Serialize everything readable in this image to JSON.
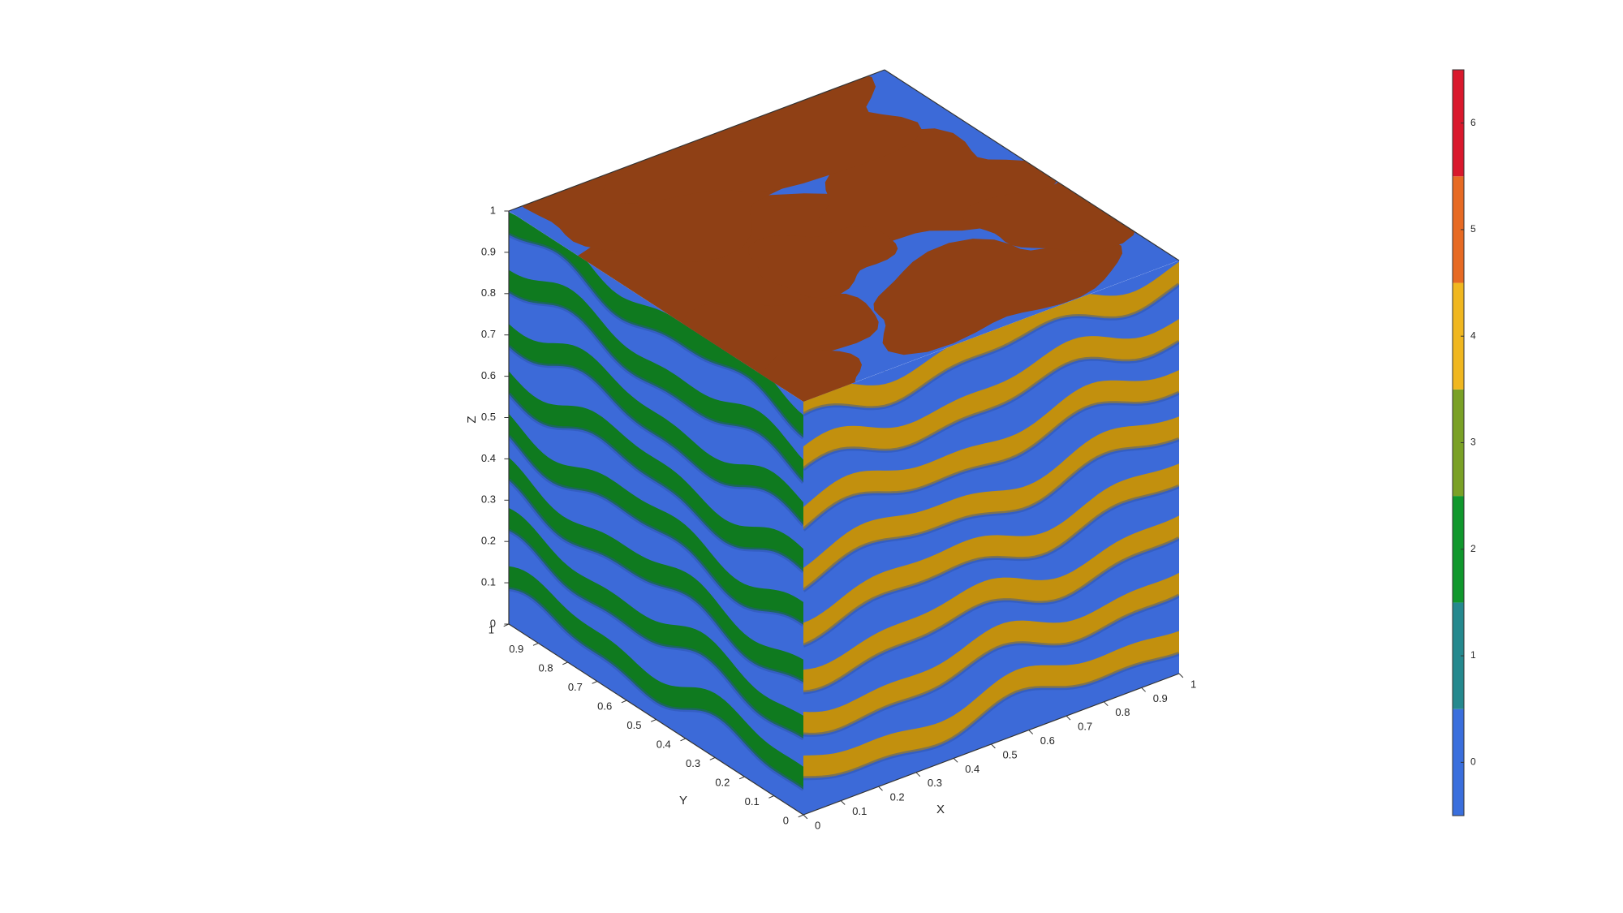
{
  "chart_data": {
    "type": "isosurface-3d",
    "title": "",
    "xlabel": "X",
    "ylabel": "Y",
    "zlabel": "Z",
    "xlim": [
      0,
      1
    ],
    "ylim": [
      0,
      1
    ],
    "zlim": [
      0,
      1
    ],
    "x_ticks": [
      "0",
      "0.1",
      "0.2",
      "0.3",
      "0.4",
      "0.5",
      "0.6",
      "0.7",
      "0.8",
      "0.9",
      "1"
    ],
    "y_ticks": [
      "0",
      "0.1",
      "0.2",
      "0.3",
      "0.4",
      "0.5",
      "0.6",
      "0.7",
      "0.8",
      "0.9",
      "1"
    ],
    "z_ticks": [
      "0",
      "0.1",
      "0.2",
      "0.3",
      "0.4",
      "0.5",
      "0.6",
      "0.7",
      "0.8",
      "0.9",
      "1"
    ],
    "layers": 8,
    "faces": {
      "top_cap": "#8f4015",
      "left_cap": "#0f7a1f",
      "right_cap": "#c2900e",
      "surface": "#3c6ad8"
    },
    "colorbar": {
      "range": [
        -0.5,
        6.5
      ],
      "ticks": [
        "0",
        "1",
        "2",
        "3",
        "4",
        "5",
        "6"
      ],
      "bins": [
        {
          "value": 0,
          "color": "#3a6fdd"
        },
        {
          "value": 1,
          "color": "#25898e"
        },
        {
          "value": 2,
          "color": "#10972c"
        },
        {
          "value": 3,
          "color": "#7aa126"
        },
        {
          "value": 4,
          "color": "#f0b720"
        },
        {
          "value": 5,
          "color": "#e76a23"
        },
        {
          "value": 6,
          "color": "#d9182c"
        }
      ]
    }
  }
}
